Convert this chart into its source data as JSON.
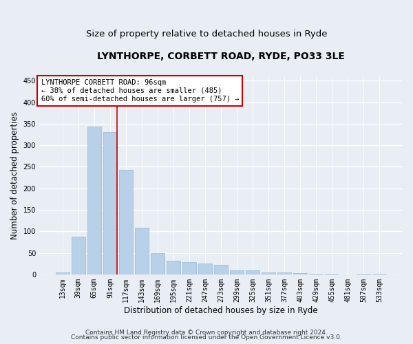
{
  "title1": "LYNTHORPE, CORBETT ROAD, RYDE, PO33 3LE",
  "title2": "Size of property relative to detached houses in Ryde",
  "xlabel": "Distribution of detached houses by size in Ryde",
  "ylabel": "Number of detached properties",
  "categories": [
    "13sqm",
    "39sqm",
    "65sqm",
    "91sqm",
    "117sqm",
    "143sqm",
    "169sqm",
    "195sqm",
    "221sqm",
    "247sqm",
    "273sqm",
    "299sqm",
    "325sqm",
    "351sqm",
    "377sqm",
    "403sqm",
    "429sqm",
    "455sqm",
    "481sqm",
    "507sqm",
    "533sqm"
  ],
  "values": [
    5,
    88,
    343,
    330,
    242,
    108,
    49,
    32,
    28,
    25,
    22,
    10,
    10,
    4,
    4,
    3,
    2,
    1,
    0,
    1,
    1
  ],
  "bar_color": "#b8d0e8",
  "bar_edge_color": "#90b8d8",
  "vline_color": "#cc0000",
  "annotation_line1": "LYNTHORPE CORBETT ROAD: 96sqm",
  "annotation_line2": "← 38% of detached houses are smaller (485)",
  "annotation_line3": "60% of semi-detached houses are larger (757) →",
  "annotation_box_facecolor": "#ffffff",
  "annotation_box_edgecolor": "#cc0000",
  "ylim": [
    0,
    460
  ],
  "yticks": [
    0,
    50,
    100,
    150,
    200,
    250,
    300,
    350,
    400,
    450
  ],
  "footnote1": "Contains HM Land Registry data © Crown copyright and database right 2024.",
  "footnote2": "Contains public sector information licensed under the Open Government Licence v3.0.",
  "background_color": "#e8eef4",
  "plot_background_color": "#e8eef4",
  "grid_color": "#ffffff",
  "title1_fontsize": 10,
  "title2_fontsize": 9.5,
  "tick_fontsize": 7,
  "ylabel_fontsize": 8.5,
  "xlabel_fontsize": 8.5,
  "annotation_fontsize": 7.5,
  "footnote_fontsize": 6.5
}
